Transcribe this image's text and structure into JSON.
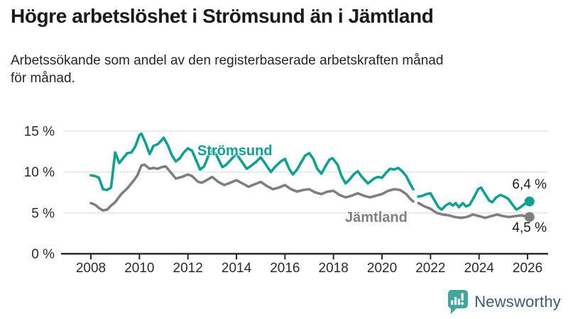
{
  "chart_data": {
    "type": "line",
    "title": "Högre arbetslöshet i Strömsund än i Jämtland",
    "subtitle": "Arbetssökande som andel av den registerbaserade arbetskraften månad för månad.",
    "subtitle_lines": [
      "Arbetssökande som andel av den registerbaserade arbetskraften månad",
      "för månad."
    ],
    "grid": "horizontal-only",
    "legend_position": "inline-labels-on-lines",
    "x_axis": {
      "range": [
        2007.6,
        2026.8
      ],
      "ticks": [
        2008,
        2010,
        2012,
        2014,
        2016,
        2018,
        2020,
        2022,
        2024,
        2026
      ],
      "tick_labels": [
        "2008",
        "2010",
        "2012",
        "2014",
        "2016",
        "2018",
        "2020",
        "2022",
        "2024",
        "2026"
      ]
    },
    "y_axis": {
      "range": [
        0,
        15.5
      ],
      "unit": "%",
      "ticks": [
        0,
        5,
        10,
        15
      ],
      "tick_labels": [
        "0 %",
        "5 %",
        "10 %",
        "15 %"
      ]
    },
    "series": [
      {
        "name": "Strömsund",
        "color": "#0da192",
        "end_label": "6,4 %",
        "end_value": 6.4,
        "points": [
          [
            2008.0,
            9.6
          ],
          [
            2008.17,
            9.5
          ],
          [
            2008.33,
            9.3
          ],
          [
            2008.5,
            7.9
          ],
          [
            2008.67,
            7.8
          ],
          [
            2008.83,
            8.1
          ],
          [
            2009.0,
            12.4
          ],
          [
            2009.17,
            11.1
          ],
          [
            2009.33,
            11.7
          ],
          [
            2009.5,
            12.3
          ],
          [
            2009.67,
            12.4
          ],
          [
            2009.83,
            13.1
          ],
          [
            2010.0,
            14.5
          ],
          [
            2010.08,
            14.7
          ],
          [
            2010.25,
            13.6
          ],
          [
            2010.42,
            12.2
          ],
          [
            2010.58,
            13.2
          ],
          [
            2010.75,
            13.4
          ],
          [
            2010.92,
            13.9
          ],
          [
            2011.0,
            14.2
          ],
          [
            2011.17,
            13.3
          ],
          [
            2011.33,
            12.1
          ],
          [
            2011.5,
            11.3
          ],
          [
            2011.67,
            11.7
          ],
          [
            2011.83,
            12.4
          ],
          [
            2012.0,
            12.9
          ],
          [
            2012.17,
            12.6
          ],
          [
            2012.33,
            11.5
          ],
          [
            2012.5,
            10.3
          ],
          [
            2012.67,
            10.7
          ],
          [
            2012.83,
            11.9
          ],
          [
            2013.0,
            12.7
          ],
          [
            2013.17,
            12.1
          ],
          [
            2013.42,
            10.6
          ],
          [
            2013.58,
            10.9
          ],
          [
            2013.83,
            11.7
          ],
          [
            2014.0,
            12.2
          ],
          [
            2014.17,
            11.5
          ],
          [
            2014.42,
            10.4
          ],
          [
            2014.58,
            10.7
          ],
          [
            2014.83,
            11.3
          ],
          [
            2015.0,
            11.8
          ],
          [
            2015.17,
            11.1
          ],
          [
            2015.42,
            10.0
          ],
          [
            2015.58,
            10.6
          ],
          [
            2015.83,
            11.3
          ],
          [
            2016.0,
            11.6
          ],
          [
            2016.17,
            10.4
          ],
          [
            2016.33,
            9.7
          ],
          [
            2016.5,
            10.3
          ],
          [
            2016.67,
            11.2
          ],
          [
            2016.83,
            12.0
          ],
          [
            2017.0,
            12.3
          ],
          [
            2017.17,
            11.6
          ],
          [
            2017.33,
            10.4
          ],
          [
            2017.5,
            9.8
          ],
          [
            2017.67,
            10.7
          ],
          [
            2017.83,
            11.5
          ],
          [
            2017.96,
            11.7
          ],
          [
            2018.17,
            10.9
          ],
          [
            2018.33,
            9.5
          ],
          [
            2018.5,
            8.6
          ],
          [
            2018.67,
            9.1
          ],
          [
            2018.83,
            9.7
          ],
          [
            2019.0,
            10.1
          ],
          [
            2019.17,
            9.4
          ],
          [
            2019.42,
            8.6
          ],
          [
            2019.67,
            9.2
          ],
          [
            2019.83,
            9.4
          ],
          [
            2020.0,
            9.3
          ],
          [
            2020.17,
            9.9
          ],
          [
            2020.33,
            10.4
          ],
          [
            2020.5,
            10.3
          ],
          [
            2020.67,
            10.5
          ],
          [
            2020.83,
            10.1
          ],
          [
            2021.0,
            9.5
          ],
          [
            2021.17,
            8.5
          ],
          [
            2021.29,
            7.9
          ],
          [
            2021.38,
            null
          ],
          [
            2021.5,
            7.0
          ],
          [
            2021.67,
            7.1
          ],
          [
            2021.83,
            7.3
          ],
          [
            2022.0,
            7.4
          ],
          [
            2022.17,
            6.5
          ],
          [
            2022.33,
            5.7
          ],
          [
            2022.46,
            5.4
          ],
          [
            2022.62,
            5.9
          ],
          [
            2022.79,
            6.2
          ],
          [
            2022.92,
            5.9
          ],
          [
            2023.04,
            6.2
          ],
          [
            2023.17,
            5.7
          ],
          [
            2023.33,
            6.2
          ],
          [
            2023.46,
            5.8
          ],
          [
            2023.62,
            6.0
          ],
          [
            2023.79,
            6.9
          ],
          [
            2023.96,
            7.9
          ],
          [
            2024.08,
            8.1
          ],
          [
            2024.25,
            7.3
          ],
          [
            2024.42,
            6.5
          ],
          [
            2024.54,
            6.3
          ],
          [
            2024.71,
            6.9
          ],
          [
            2024.88,
            7.2
          ],
          [
            2025.04,
            7.0
          ],
          [
            2025.21,
            6.7
          ],
          [
            2025.38,
            6.0
          ],
          [
            2025.54,
            5.4
          ],
          [
            2025.71,
            5.7
          ],
          [
            2025.88,
            6.1
          ],
          [
            2026.08,
            6.4
          ]
        ]
      },
      {
        "name": "Jämtland",
        "color": "#7f7f7f",
        "end_label": "4,5 %",
        "end_value": 4.5,
        "points": [
          [
            2008.0,
            6.2
          ],
          [
            2008.17,
            6.0
          ],
          [
            2008.33,
            5.6
          ],
          [
            2008.5,
            5.3
          ],
          [
            2008.67,
            5.4
          ],
          [
            2008.83,
            5.9
          ],
          [
            2009.0,
            6.3
          ],
          [
            2009.25,
            7.3
          ],
          [
            2009.5,
            8.0
          ],
          [
            2009.75,
            8.9
          ],
          [
            2009.92,
            9.6
          ],
          [
            2010.08,
            10.8
          ],
          [
            2010.21,
            10.9
          ],
          [
            2010.42,
            10.4
          ],
          [
            2010.58,
            10.5
          ],
          [
            2010.75,
            10.4
          ],
          [
            2010.92,
            10.6
          ],
          [
            2011.08,
            10.7
          ],
          [
            2011.25,
            10.1
          ],
          [
            2011.5,
            9.2
          ],
          [
            2011.75,
            9.4
          ],
          [
            2012.0,
            9.7
          ],
          [
            2012.17,
            9.5
          ],
          [
            2012.42,
            8.8
          ],
          [
            2012.58,
            8.7
          ],
          [
            2012.83,
            9.1
          ],
          [
            2013.0,
            9.4
          ],
          [
            2013.25,
            8.8
          ],
          [
            2013.5,
            8.4
          ],
          [
            2013.75,
            8.7
          ],
          [
            2014.0,
            9.0
          ],
          [
            2014.25,
            8.6
          ],
          [
            2014.5,
            8.2
          ],
          [
            2014.75,
            8.5
          ],
          [
            2015.0,
            8.8
          ],
          [
            2015.25,
            8.3
          ],
          [
            2015.5,
            7.9
          ],
          [
            2015.75,
            8.1
          ],
          [
            2016.0,
            8.4
          ],
          [
            2016.25,
            7.9
          ],
          [
            2016.5,
            7.6
          ],
          [
            2016.75,
            7.8
          ],
          [
            2017.0,
            7.9
          ],
          [
            2017.25,
            7.5
          ],
          [
            2017.5,
            7.3
          ],
          [
            2017.75,
            7.6
          ],
          [
            2018.0,
            7.7
          ],
          [
            2018.25,
            7.2
          ],
          [
            2018.5,
            6.9
          ],
          [
            2018.75,
            7.1
          ],
          [
            2019.0,
            7.4
          ],
          [
            2019.25,
            7.1
          ],
          [
            2019.5,
            6.9
          ],
          [
            2019.75,
            7.1
          ],
          [
            2020.0,
            7.3
          ],
          [
            2020.25,
            7.7
          ],
          [
            2020.5,
            7.9
          ],
          [
            2020.75,
            7.8
          ],
          [
            2021.0,
            7.3
          ],
          [
            2021.17,
            6.7
          ],
          [
            2021.29,
            6.4
          ],
          [
            2021.38,
            null
          ],
          [
            2021.5,
            6.2
          ],
          [
            2021.75,
            5.8
          ],
          [
            2022.0,
            5.5
          ],
          [
            2022.25,
            5.0
          ],
          [
            2022.5,
            4.8
          ],
          [
            2022.75,
            4.7
          ],
          [
            2023.0,
            4.5
          ],
          [
            2023.25,
            4.4
          ],
          [
            2023.5,
            4.5
          ],
          [
            2023.75,
            4.8
          ],
          [
            2024.0,
            4.6
          ],
          [
            2024.25,
            4.4
          ],
          [
            2024.5,
            4.6
          ],
          [
            2024.75,
            4.8
          ],
          [
            2025.0,
            4.6
          ],
          [
            2025.25,
            4.5
          ],
          [
            2025.5,
            4.6
          ],
          [
            2025.75,
            4.7
          ],
          [
            2026.08,
            4.5
          ]
        ]
      }
    ],
    "colors": {
      "gridline": "#e3e3e3",
      "axis": "#2a2a2a",
      "axis_text": "#2a2a2a"
    }
  },
  "footer": {
    "brand_name": "Newsworthy",
    "logo_icon": "bar-chart-speech-bubble",
    "icon_color": "#41a69e",
    "brand_text_color": "#3d5a6e"
  }
}
